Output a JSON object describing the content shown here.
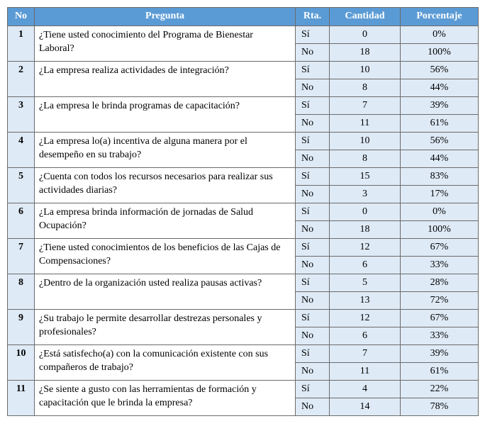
{
  "colors": {
    "header_bg": "#5b9bd5",
    "header_fg": "#ffffff",
    "shaded_bg": "#deeaf6",
    "border": "#6b6b6b"
  },
  "header": {
    "no": "No",
    "pregunta": "Pregunta",
    "rta": "Rta.",
    "cantidad": "Cantidad",
    "porcentaje": "Porcentaje"
  },
  "rows": [
    {
      "no": "1",
      "question": "¿Tiene usted conocimiento del Programa de Bienestar Laboral?",
      "si": {
        "label": "Sí",
        "count": "0",
        "pct": "0%"
      },
      "no_ans": {
        "label": "No",
        "count": "18",
        "pct": "100%"
      }
    },
    {
      "no": "2",
      "question": "¿La empresa realiza actividades de integración?",
      "si": {
        "label": "Sí",
        "count": "10",
        "pct": "56%"
      },
      "no_ans": {
        "label": "No",
        "count": "8",
        "pct": "44%"
      }
    },
    {
      "no": "3",
      "question": "¿La empresa le brinda programas de capacitación?",
      "si": {
        "label": "Sí",
        "count": "7",
        "pct": "39%"
      },
      "no_ans": {
        "label": "No",
        "count": "11",
        "pct": "61%"
      }
    },
    {
      "no": "4",
      "question": "¿La empresa lo(a) incentiva de alguna manera por el desempeño en su trabajo?",
      "si": {
        "label": "Sí",
        "count": "10",
        "pct": "56%"
      },
      "no_ans": {
        "label": "No",
        "count": "8",
        "pct": "44%"
      }
    },
    {
      "no": "5",
      "question": "¿Cuenta con todos los recursos necesarios para realizar sus actividades diarias?",
      "si": {
        "label": "Sí",
        "count": "15",
        "pct": "83%"
      },
      "no_ans": {
        "label": "No",
        "count": "3",
        "pct": "17%"
      }
    },
    {
      "no": "6",
      "question": "¿La empresa brinda información de jornadas de Salud Ocupación?",
      "si": {
        "label": "Sí",
        "count": "0",
        "pct": "0%"
      },
      "no_ans": {
        "label": "No",
        "count": "18",
        "pct": "100%"
      }
    },
    {
      "no": "7",
      "question": "¿Tiene usted conocimientos de los beneficios de las Cajas de Compensaciones?",
      "si": {
        "label": "Sí",
        "count": "12",
        "pct": "67%"
      },
      "no_ans": {
        "label": "No",
        "count": "6",
        "pct": "33%"
      }
    },
    {
      "no": "8",
      "question": "¿Dentro de la organización usted realiza pausas activas?",
      "si": {
        "label": "Sí",
        "count": "5",
        "pct": "28%"
      },
      "no_ans": {
        "label": "No",
        "count": "13",
        "pct": "72%"
      }
    },
    {
      "no": "9",
      "question": "¿Su trabajo le permite desarrollar destrezas personales y profesionales?",
      "si": {
        "label": "Sí",
        "count": "12",
        "pct": "67%"
      },
      "no_ans": {
        "label": "No",
        "count": "6",
        "pct": "33%"
      }
    },
    {
      "no": "10",
      "question": "¿Está satisfecho(a) con la comunicación existente con sus compañeros de trabajo?",
      "si": {
        "label": "Sí",
        "count": "7",
        "pct": "39%"
      },
      "no_ans": {
        "label": "No",
        "count": "11",
        "pct": "61%"
      }
    },
    {
      "no": "11",
      "question": "¿Se siente a gusto con las herramientas de formación y capacitación que le brinda la empresa?",
      "si": {
        "label": "Sí",
        "count": "4",
        "pct": "22%"
      },
      "no_ans": {
        "label": "No",
        "count": "14",
        "pct": "78%"
      }
    }
  ]
}
